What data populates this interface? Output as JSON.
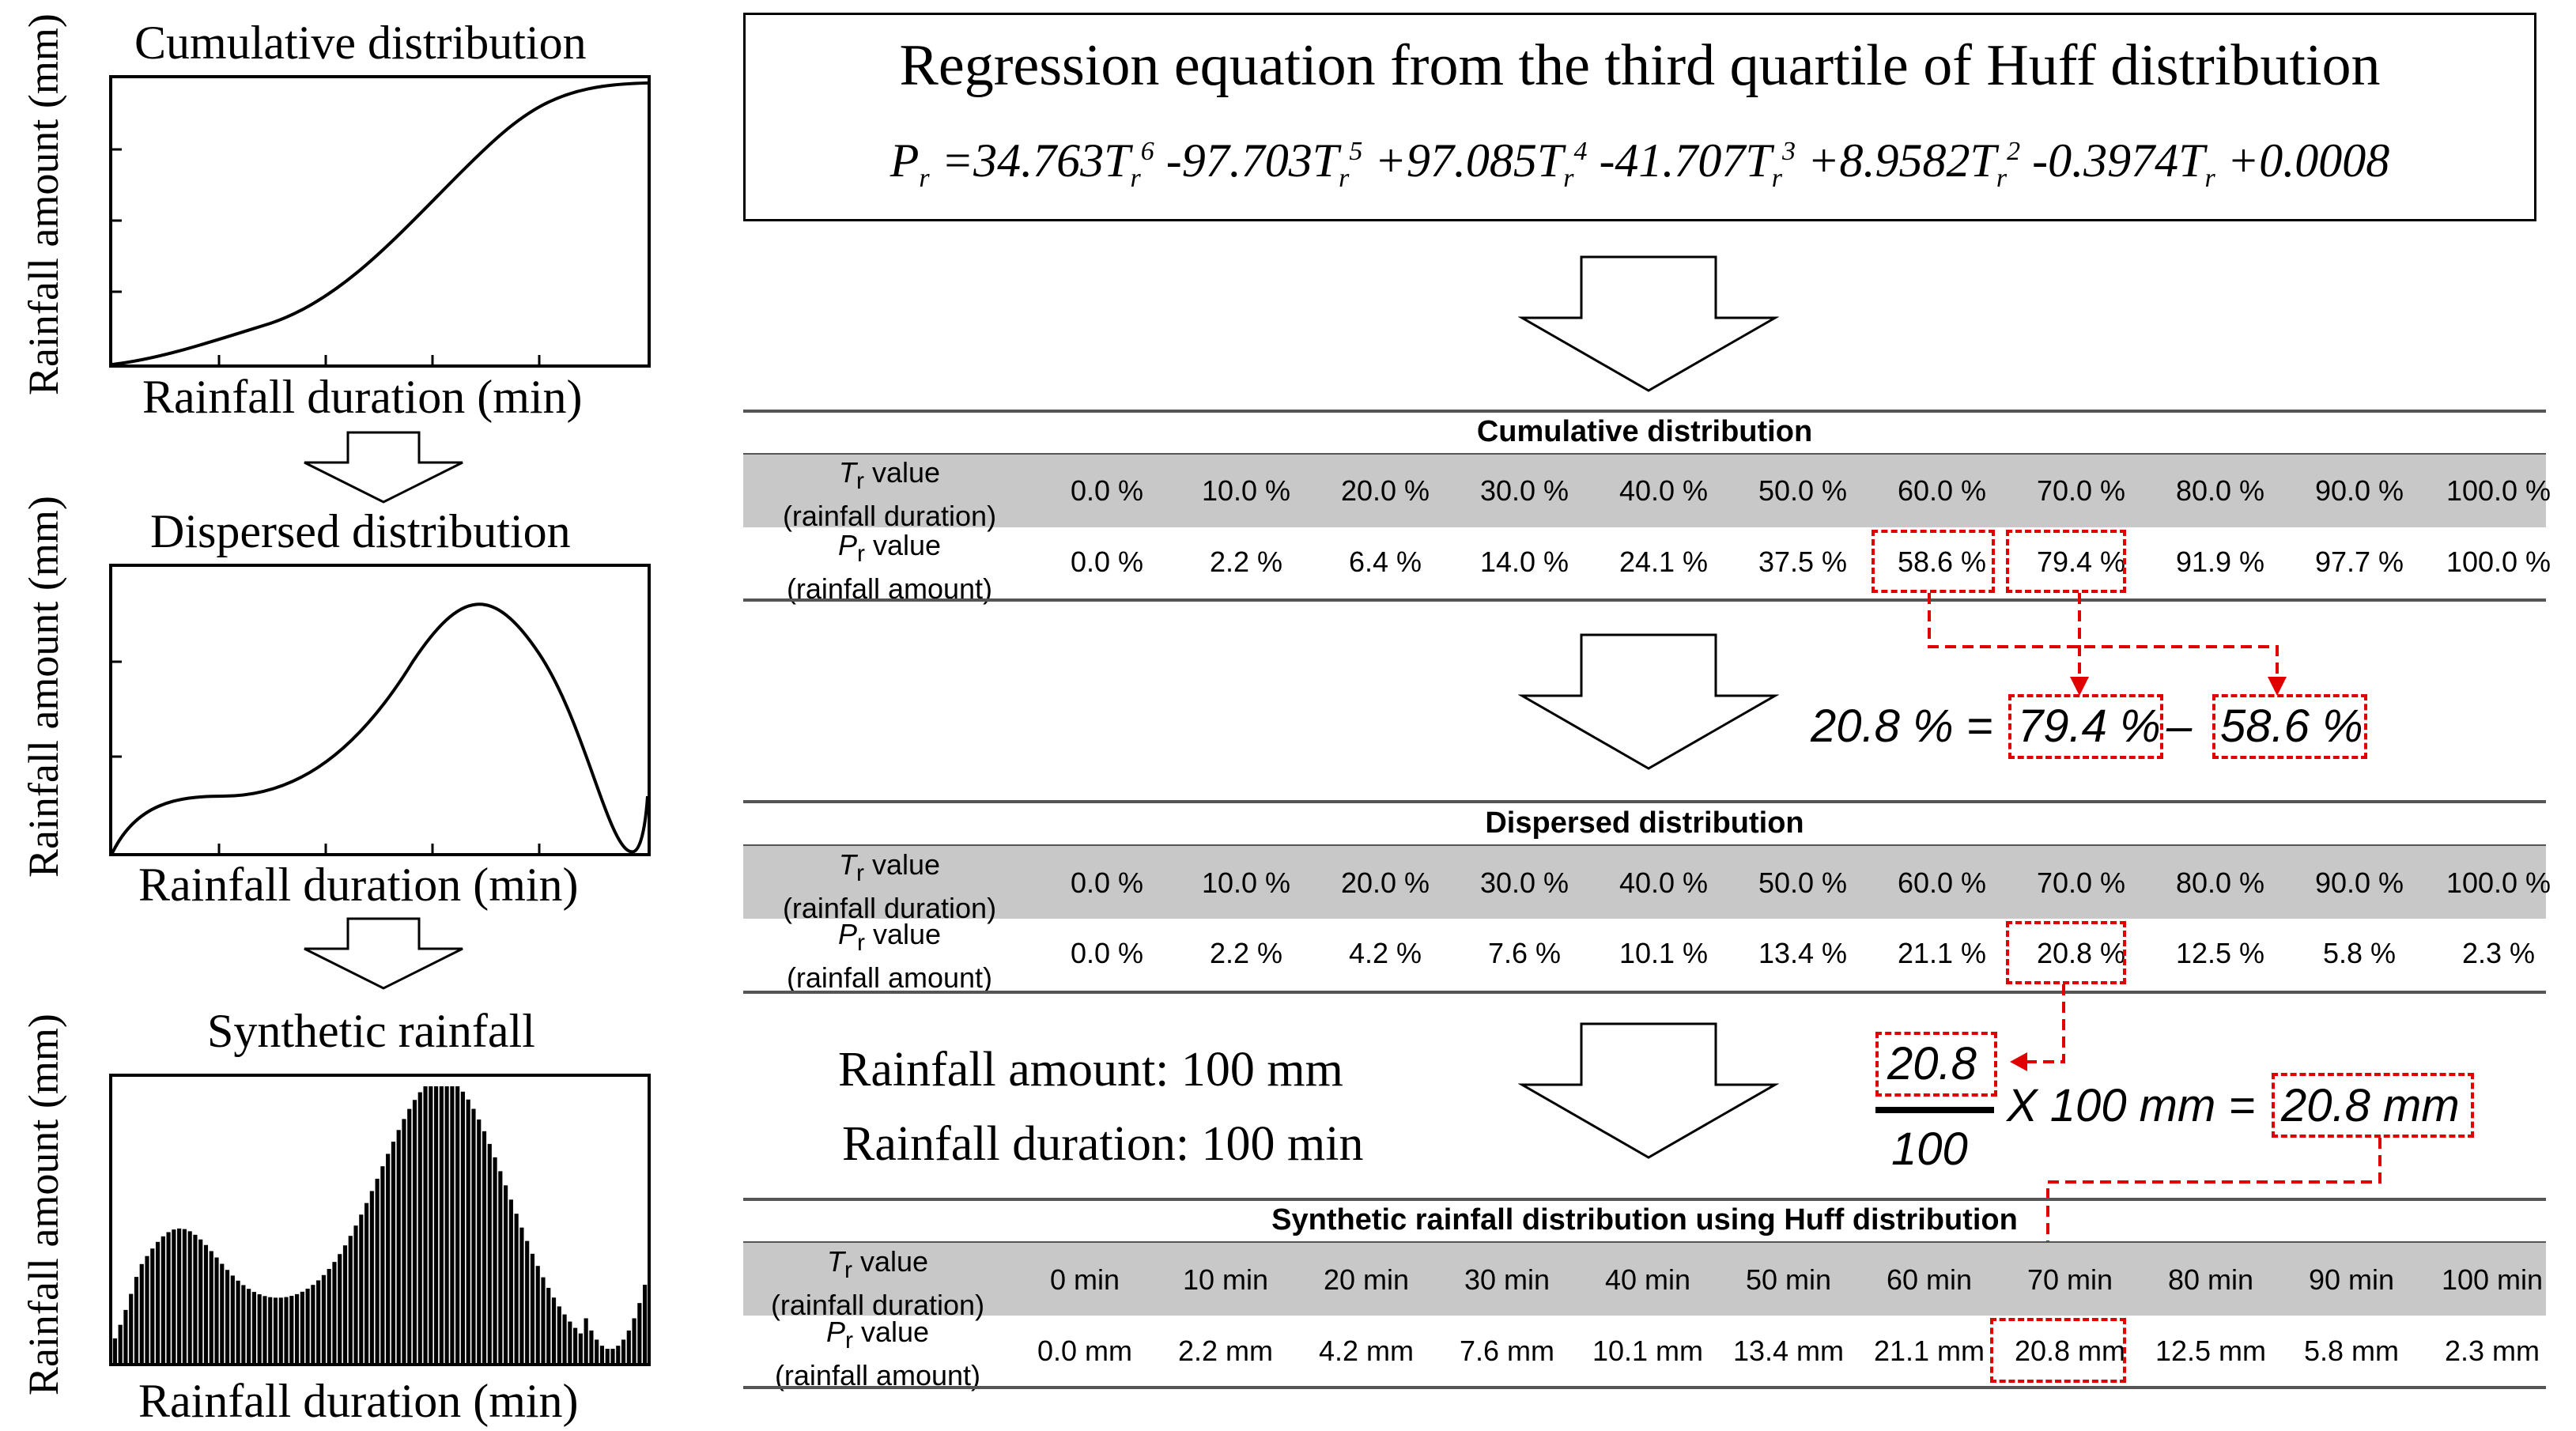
{
  "left_panel": {
    "plot1": {
      "title": "Cumulative  distribution",
      "xlabel": "Rainfall  duration (min)",
      "ylabel": "Rainfall  amount (mm)"
    },
    "plot2": {
      "title": "Dispersed distribution",
      "xlabel": "Rainfall  duration (min)",
      "ylabel": "Rainfall  amount (mm)"
    },
    "plot3": {
      "title": "Synthetic rainfall",
      "xlabel": "Rainfall  duration (min)",
      "ylabel": "Rainfall  amount (mm)"
    }
  },
  "equation_box": {
    "title": "Regression equation from the third quartile of Huff distribution",
    "lhs": "P",
    "lhs_sub": "r",
    "terms": [
      {
        "coef": " =34.763T",
        "sub": "r",
        "sup": "6"
      },
      {
        "coef": "-97.703T",
        "sub": "r",
        "sup": "5"
      },
      {
        "coef": "+97.085T",
        "sub": "r",
        "sup": "4"
      },
      {
        "coef": "-41.707T",
        "sub": "r",
        "sup": "3"
      },
      {
        "coef": "+8.9582T",
        "sub": "r",
        "sup": "2"
      },
      {
        "coef": "-0.3974T",
        "sub": "r",
        "sup": ""
      },
      {
        "coef": "+0.0008",
        "sub": "",
        "sup": ""
      }
    ]
  },
  "table1": {
    "title": "Cumulative distribution",
    "row1_label_a": "T",
    "row1_label_sub": "r",
    "row1_label_b": " value",
    "row1_label_c": "(rainfall duration)",
    "row2_label_a": "P",
    "row2_label_sub": "r",
    "row2_label_b": " value",
    "row2_label_c": "(rainfall amount)",
    "row1": [
      "0.0 %",
      "10.0 %",
      "20.0 %",
      "30.0 %",
      "40.0 %",
      "50.0 %",
      "60.0 %",
      "70.0 %",
      "80.0 %",
      "90.0 %",
      "100.0 %"
    ],
    "row2": [
      "0.0 %",
      "2.2 %",
      "6.4 %",
      "14.0 %",
      "24.1 %",
      "37.5 %",
      "58.6 %",
      "79.4 %",
      "91.9 %",
      "97.7 %",
      "100.0 %"
    ]
  },
  "calc1": {
    "result": "20.8 % =",
    "a": "79.4 %",
    "minus": "–",
    "b": "58.6 %"
  },
  "table2": {
    "title": "Dispersed distribution",
    "row1_label_a": "T",
    "row1_label_sub": "r",
    "row1_label_b": " value",
    "row1_label_c": "(rainfall duration)",
    "row2_label_a": "P",
    "row2_label_sub": "r",
    "row2_label_b": " value",
    "row2_label_c": "(rainfall amount)",
    "row1": [
      "0.0 %",
      "10.0 %",
      "20.0 %",
      "30.0 %",
      "40.0 %",
      "50.0 %",
      "60.0 %",
      "70.0 %",
      "80.0 %",
      "90.0 %",
      "100.0 %"
    ],
    "row2": [
      "0.0 %",
      "2.2 %",
      "4.2 %",
      "7.6 %",
      "10.1 %",
      "13.4 %",
      "21.1 %",
      "20.8 %",
      "12.5 %",
      "5.8 %",
      "2.3 %"
    ]
  },
  "notes": {
    "amount": "Rainfall  amount:  100 mm",
    "duration": "Rainfall  duration:  100 min"
  },
  "calc2": {
    "numerator": "20.8",
    "denominator": "100",
    "mult": "X 100 mm =",
    "result": "20.8 mm"
  },
  "table3": {
    "title": "Synthetic rainfall distribution using Huff distribution",
    "row1_label_a": "T",
    "row1_label_sub": "r",
    "row1_label_b": " value",
    "row1_label_c": "(rainfall duration)",
    "row2_label_a": "P",
    "row2_label_sub": "r",
    "row2_label_b": " value",
    "row2_label_c": "(rainfall amount)",
    "row1": [
      "0 min",
      "10 min",
      "20 min",
      "30 min",
      "40 min",
      "50 min",
      "60 min",
      "70 min",
      "80 min",
      "90 min",
      "100 min"
    ],
    "row2": [
      "0.0 mm",
      "2.2 mm",
      "4.2 mm",
      "7.6 mm",
      "10.1 mm",
      "13.4 mm",
      "21.1 mm",
      "20.8 mm",
      "12.5 mm",
      "5.8 mm",
      "2.3 mm"
    ]
  },
  "colors": {
    "highlight": "#e00000",
    "band": "#c8c8c8"
  }
}
